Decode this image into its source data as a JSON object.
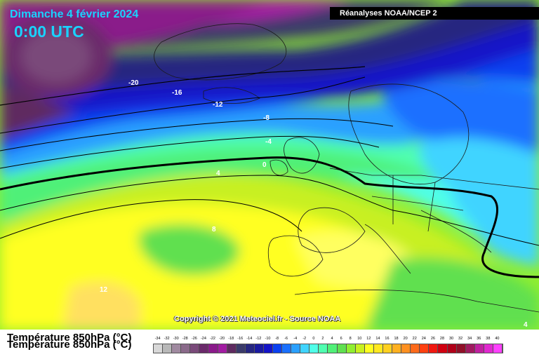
{
  "header": {
    "date": "Dimanche 4 février 2024",
    "time": "0:00 UTC",
    "source": "Réanalyses NOAA/NCEP 2"
  },
  "map": {
    "variable": "Température 850hPa (°C)",
    "copyright": "Copyright © 2021 Meteociel.fr - Source NOAA",
    "isotherm_labels": [
      "-20",
      "-16",
      "-12",
      "-8",
      "-4",
      "0",
      "4",
      "8",
      "12",
      "4"
    ]
  },
  "legend": {
    "title": "Température 850hPa (°C)",
    "values": [
      "-34",
      "-32",
      "-30",
      "-28",
      "-26",
      "-24",
      "-22",
      "-20",
      "-18",
      "-16",
      "-14",
      "-12",
      "-10",
      "-8",
      "-6",
      "-4",
      "-2",
      "0",
      "2",
      "4",
      "6",
      "8",
      "10",
      "12",
      "14",
      "16",
      "18",
      "20",
      "22",
      "24",
      "26",
      "28",
      "30",
      "32",
      "34",
      "36",
      "38",
      "40"
    ],
    "colors": [
      "#d8d8d8",
      "#b8b8b8",
      "#a08aa0",
      "#8a6a8a",
      "#7a4a7a",
      "#6a2a6a",
      "#8a1a8a",
      "#a21ca2",
      "#5e2a60",
      "#3a3a6a",
      "#262680",
      "#1a1aa0",
      "#1414c8",
      "#0a40f0",
      "#1a70ff",
      "#2aa0ff",
      "#40d4ff",
      "#50ffe8",
      "#50ffb0",
      "#50f078",
      "#60e050",
      "#90ee30",
      "#c8f020",
      "#ffff20",
      "#ffe820",
      "#ffd020",
      "#ffb020",
      "#ff9020",
      "#ff6a1a",
      "#ff4010",
      "#f01810",
      "#d00010",
      "#b00018",
      "#901028",
      "#a01a60",
      "#c020a0",
      "#e028d0",
      "#ff40ff"
    ]
  }
}
